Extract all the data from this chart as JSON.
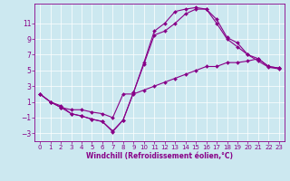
{
  "xlabel": "Windchill (Refroidissement éolien,°C)",
  "bg_color": "#cce8f0",
  "line_color": "#880088",
  "xlim": [
    -0.5,
    23.5
  ],
  "ylim": [
    -4,
    13.5
  ],
  "xticks": [
    0,
    1,
    2,
    3,
    4,
    5,
    6,
    7,
    8,
    9,
    10,
    11,
    12,
    13,
    14,
    15,
    16,
    17,
    18,
    19,
    20,
    21,
    22,
    23
  ],
  "yticks": [
    -3,
    -1,
    1,
    3,
    5,
    7,
    9,
    11
  ],
  "curve1_x": [
    0,
    1,
    2,
    3,
    4,
    5,
    6,
    7,
    8,
    9,
    10,
    11,
    12,
    13,
    14,
    15,
    16,
    17,
    18,
    19,
    20,
    21,
    22,
    23
  ],
  "curve1_y": [
    2.0,
    1.0,
    0.5,
    -0.5,
    -0.8,
    -1.2,
    -1.5,
    -2.8,
    -1.3,
    2.2,
    6.0,
    10.0,
    11.0,
    12.5,
    12.8,
    13.0,
    12.8,
    11.0,
    9.0,
    8.0,
    7.0,
    6.5,
    5.5,
    5.3
  ],
  "curve2_x": [
    0,
    1,
    2,
    3,
    4,
    5,
    6,
    7,
    8,
    9,
    10,
    11,
    12,
    13,
    14,
    15,
    16,
    17,
    18,
    19,
    20,
    21,
    22,
    23
  ],
  "curve2_y": [
    2.0,
    1.0,
    0.3,
    -0.5,
    -0.8,
    -1.2,
    -1.5,
    -2.7,
    -1.3,
    2.2,
    5.8,
    9.5,
    10.0,
    11.0,
    12.2,
    12.8,
    12.8,
    11.5,
    9.2,
    8.5,
    7.0,
    6.2,
    5.4,
    5.2
  ],
  "curve3_x": [
    0,
    1,
    2,
    3,
    4,
    5,
    6,
    7,
    8,
    9,
    10,
    11,
    12,
    13,
    14,
    15,
    16,
    17,
    18,
    19,
    20,
    21,
    22,
    23
  ],
  "curve3_y": [
    2.0,
    1.0,
    0.3,
    0.0,
    0.0,
    -0.3,
    -0.5,
    -1.0,
    2.0,
    2.0,
    2.5,
    3.0,
    3.5,
    4.0,
    4.5,
    5.0,
    5.5,
    5.5,
    6.0,
    6.0,
    6.2,
    6.5,
    5.5,
    5.3
  ],
  "marker": "D",
  "markersize": 2.0,
  "linewidth": 0.8,
  "tick_fontsize": 5.0,
  "xlabel_fontsize": 5.5
}
